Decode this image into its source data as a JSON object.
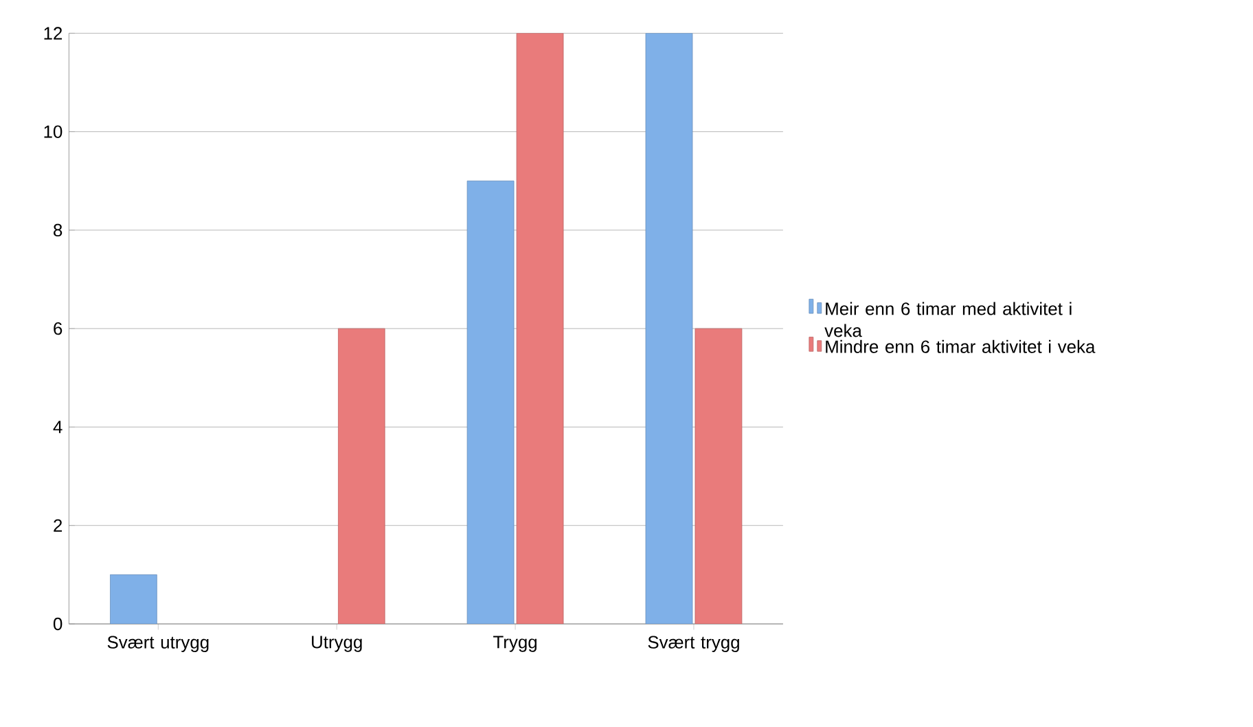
{
  "chart_data": {
    "type": "bar",
    "categories": [
      "Svært utrygg",
      "Utrygg",
      "Trygg",
      "Svært trygg"
    ],
    "series": [
      {
        "name": "Meir enn 6 timar med aktivitet i veka",
        "color": "#7fb0e8",
        "values": [
          1,
          null,
          9,
          12
        ]
      },
      {
        "name": "Mindre enn 6 timar aktivitet i veka",
        "color": "#e97b7b",
        "values": [
          null,
          6,
          12,
          6
        ]
      }
    ],
    "ylim": [
      0,
      12
    ],
    "yticks": [
      0,
      2,
      4,
      6,
      8,
      10,
      12
    ],
    "grid": "y",
    "legend": "right"
  }
}
